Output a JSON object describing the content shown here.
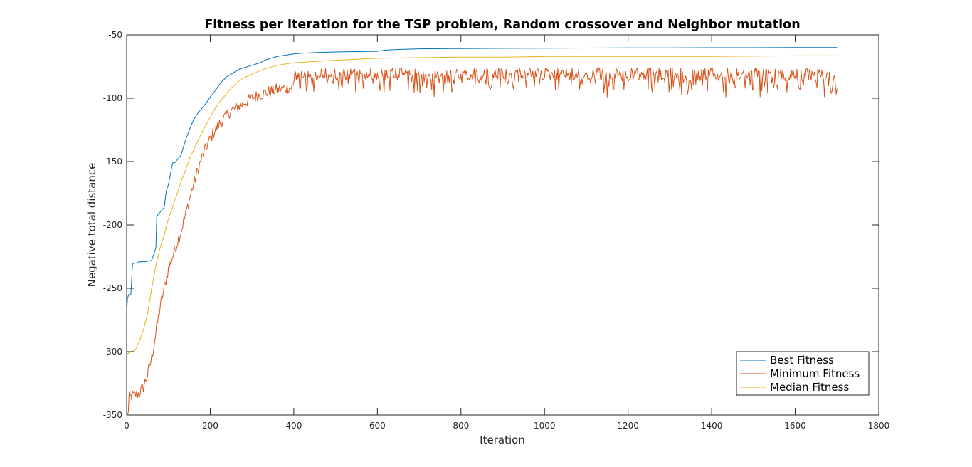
{
  "chart_data": {
    "type": "line",
    "title": "Fitness per iteration for the TSP problem, Random crossover and Neighbor mutation",
    "xlabel": "Iteration",
    "ylabel": "Negative total distance",
    "xlim": [
      0,
      1800
    ],
    "ylim": [
      -350,
      -50
    ],
    "xticks": [
      0,
      200,
      400,
      600,
      800,
      1000,
      1200,
      1400,
      1600,
      1800
    ],
    "yticks": [
      -350,
      -300,
      -250,
      -200,
      -150,
      -100,
      -50
    ],
    "grid": false,
    "legend_position": "bottom-right",
    "series": [
      {
        "name": "Best Fitness",
        "color": "#0072BD",
        "x": [
          0,
          2,
          5,
          10,
          14,
          20,
          25,
          30,
          45,
          60,
          70,
          72,
          80,
          90,
          95,
          100,
          110,
          115,
          130,
          140,
          150,
          160,
          170,
          180,
          190,
          200,
          210,
          220,
          230,
          240,
          250,
          260,
          270,
          280,
          290,
          300,
          310,
          320,
          330,
          340,
          350,
          360,
          380,
          400,
          420,
          450,
          500,
          550,
          600,
          620,
          650,
          700,
          800,
          900,
          1000,
          1100,
          1200,
          1300,
          1400,
          1500,
          1600,
          1700
        ],
        "y": [
          -269,
          -258,
          -255,
          -255,
          -231,
          -230,
          -230,
          -229,
          -229,
          -228,
          -218,
          -193,
          -190,
          -186,
          -173,
          -168,
          -151,
          -151,
          -145,
          -134,
          -125,
          -117,
          -112,
          -108,
          -104,
          -99,
          -95,
          -90,
          -86,
          -83,
          -81,
          -79,
          -77,
          -76,
          -75,
          -74,
          -73,
          -72,
          -70,
          -69,
          -68,
          -67,
          -66,
          -65,
          -64.5,
          -64,
          -63.5,
          -63.2,
          -63,
          -62,
          -61.5,
          -61,
          -60.8,
          -60.6,
          -60.5,
          -60.4,
          -60.3,
          -60.2,
          -60.1,
          -60.1,
          -60,
          -60
        ]
      },
      {
        "name": "Minimum Fitness",
        "color": "#D95319",
        "style": "noisy",
        "x": [
          0,
          10,
          20,
          30,
          40,
          50,
          60,
          70,
          80,
          90,
          100,
          110,
          120,
          130,
          140,
          150,
          160,
          170,
          180,
          190,
          200,
          210,
          220,
          230,
          240,
          250,
          260,
          270,
          280,
          290,
          300,
          320,
          340,
          360,
          380,
          400,
          430,
          460,
          500,
          600,
          700,
          800,
          1000,
          1200,
          1400,
          1600,
          1700
        ],
        "y": [
          -340,
          -335,
          -334,
          -333,
          -328,
          -318,
          -305,
          -285,
          -265,
          -250,
          -235,
          -225,
          -215,
          -205,
          -193,
          -180,
          -168,
          -157,
          -147,
          -139,
          -132,
          -126,
          -121,
          -117,
          -113,
          -110,
          -108,
          -106,
          -104,
          -102,
          -100,
          -97,
          -95,
          -93,
          -92,
          -91,
          -90,
          -90,
          -89,
          -89,
          -89,
          -89,
          -89,
          -89,
          -89,
          -89,
          -89
        ],
        "noise_amplitude": 6,
        "noise_amplitude_after": 400,
        "noise_amplitude_late": 14
      },
      {
        "name": "Median Fitness",
        "color": "#EDB120",
        "x": [
          0,
          5,
          10,
          20,
          30,
          40,
          50,
          60,
          70,
          80,
          90,
          100,
          110,
          120,
          130,
          140,
          150,
          160,
          170,
          180,
          190,
          200,
          210,
          220,
          230,
          240,
          250,
          260,
          270,
          280,
          300,
          320,
          340,
          360,
          380,
          400,
          450,
          500,
          600,
          700,
          800,
          900,
          1000,
          1200,
          1400,
          1600,
          1700
        ],
        "y": [
          -302,
          -301,
          -300,
          -299,
          -292,
          -283,
          -270,
          -250,
          -232,
          -218,
          -208,
          -195,
          -186,
          -176,
          -166,
          -158,
          -148,
          -141,
          -134,
          -127,
          -121,
          -115,
          -109,
          -104,
          -100,
          -96,
          -92,
          -89,
          -86,
          -84,
          -81,
          -78,
          -76,
          -74,
          -73,
          -72,
          -71,
          -70,
          -68.5,
          -68,
          -67.5,
          -67.5,
          -67,
          -67,
          -67,
          -66.5,
          -66.5
        ]
      }
    ]
  }
}
